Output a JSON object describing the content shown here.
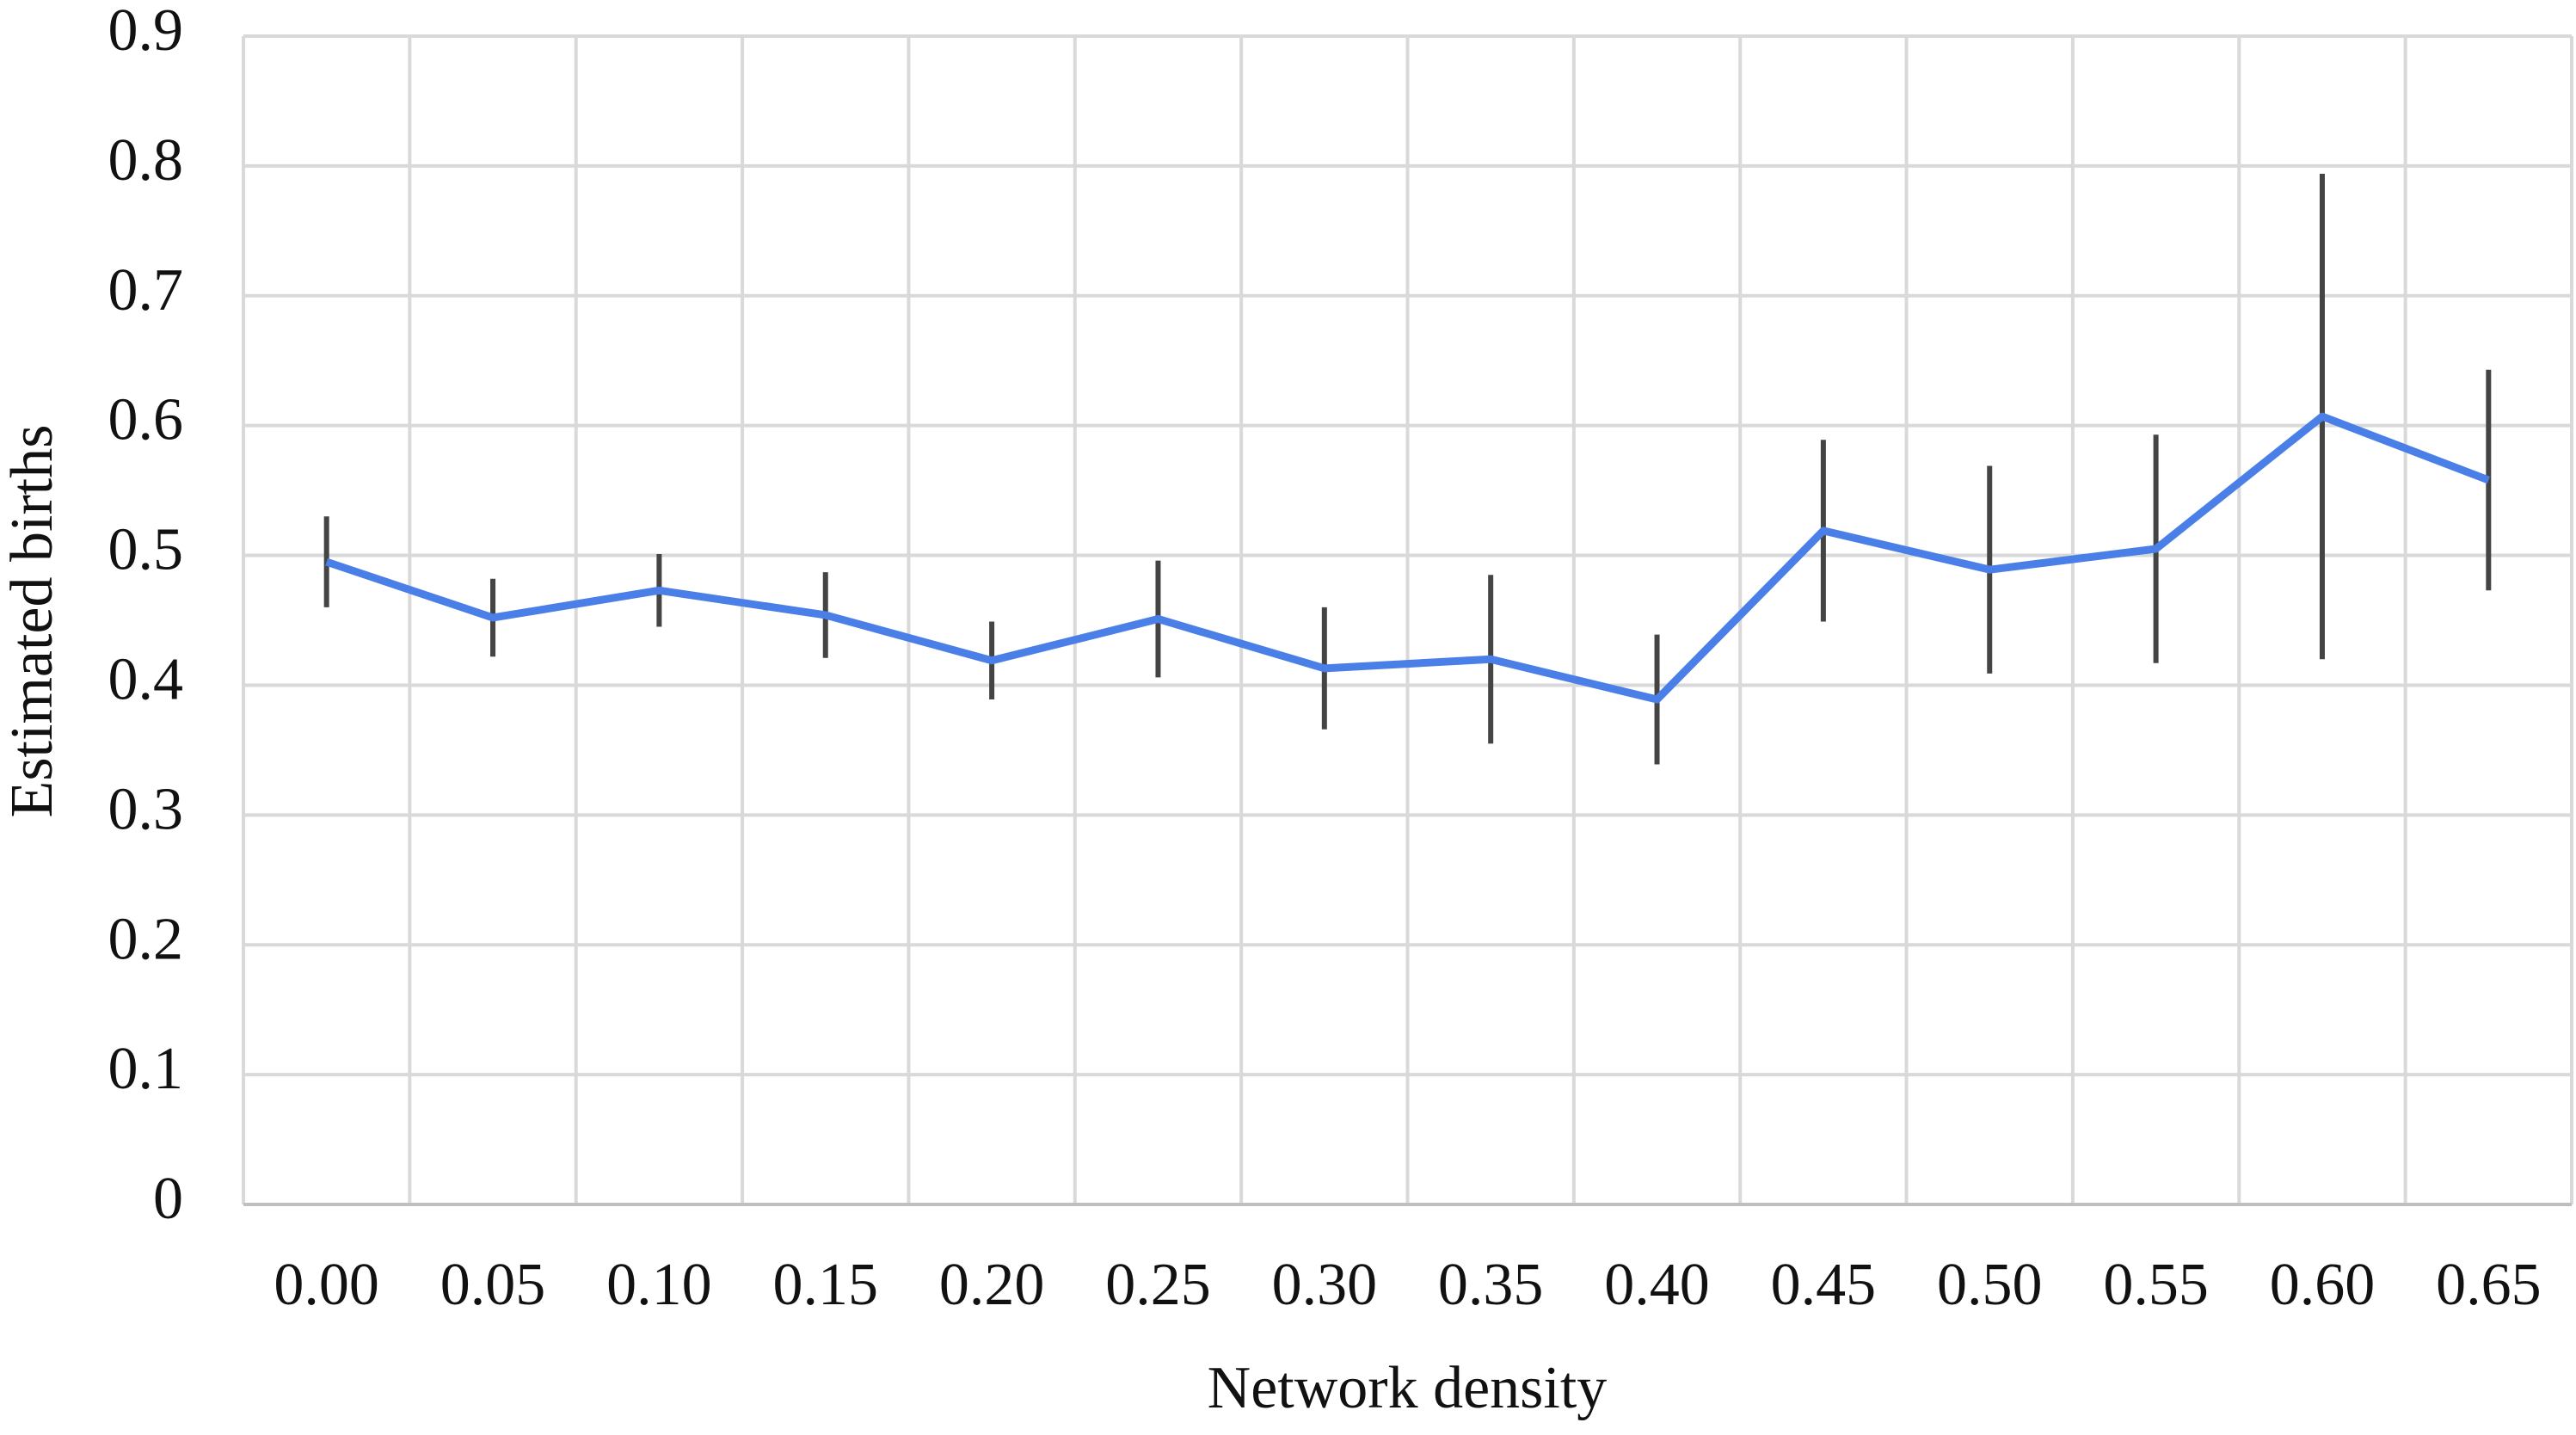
{
  "chart_data": {
    "type": "line",
    "x_label": "Network density",
    "y_label": "Estimated births",
    "categories": [
      "0.00",
      "0.05",
      "0.10",
      "0.15",
      "0.20",
      "0.25",
      "0.30",
      "0.35",
      "0.40",
      "0.45",
      "0.50",
      "0.55",
      "0.60",
      "0.65"
    ],
    "series": [
      {
        "name": "Estimated births",
        "color": "#4a7fe8",
        "values": [
          0.495,
          0.452,
          0.473,
          0.454,
          0.419,
          0.451,
          0.413,
          0.42,
          0.389,
          0.519,
          0.489,
          0.505,
          0.607,
          0.558
        ],
        "errors": [
          0.035,
          0.03,
          0.028,
          0.033,
          0.03,
          0.045,
          0.047,
          0.065,
          0.05,
          0.07,
          0.08,
          0.088,
          0.187,
          0.085
        ],
        "error_color": "#444444"
      }
    ],
    "ylim": [
      0,
      0.9
    ],
    "yticks": [
      0,
      0.1,
      0.2,
      0.3,
      0.4,
      0.5,
      0.6,
      0.7,
      0.8,
      0.9
    ],
    "grid": true
  }
}
